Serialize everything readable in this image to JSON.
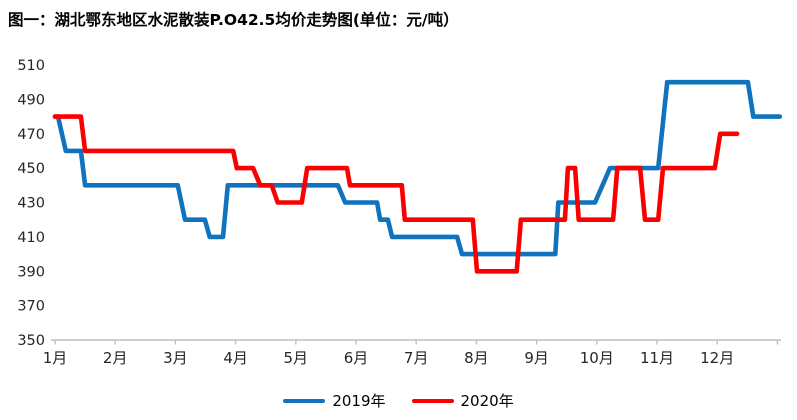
{
  "chart_data": {
    "type": "line",
    "title": "图一：湖北鄂东地区水泥散装P.O42.5均价走势图(单位：元/吨）",
    "ylabel": "",
    "xlabel": "",
    "grid": false,
    "legend_position": "bottom",
    "y_axis": {
      "min": 350,
      "max": 510,
      "ticks": [
        510,
        490,
        470,
        450,
        430,
        410,
        390,
        370,
        350
      ]
    },
    "x_axis": {
      "tick_labels": [
        "1月",
        "2月",
        "3月",
        "4月",
        "5月",
        "6月",
        "7月",
        "8月",
        "9月",
        "10月",
        "11月",
        "12月"
      ]
    },
    "axis_color": "#bfbfbf",
    "tick_label_color": "#262626",
    "series": [
      {
        "name": "2019年",
        "color": "#1172bd",
        "points": [
          [
            1.0,
            480
          ],
          [
            1.05,
            480
          ],
          [
            1.18,
            460
          ],
          [
            1.43,
            460
          ],
          [
            1.5,
            440
          ],
          [
            3.04,
            440
          ],
          [
            3.16,
            420
          ],
          [
            3.49,
            420
          ],
          [
            3.57,
            410
          ],
          [
            3.79,
            410
          ],
          [
            3.87,
            440
          ],
          [
            5.7,
            440
          ],
          [
            5.82,
            430
          ],
          [
            6.35,
            430
          ],
          [
            6.4,
            420
          ],
          [
            6.53,
            420
          ],
          [
            6.6,
            410
          ],
          [
            7.68,
            410
          ],
          [
            7.76,
            400
          ],
          [
            9.31,
            400
          ],
          [
            9.36,
            430
          ],
          [
            9.97,
            430
          ],
          [
            10.22,
            450
          ],
          [
            11.02,
            450
          ],
          [
            11.17,
            500
          ],
          [
            12.51,
            500
          ],
          [
            12.6,
            480
          ],
          [
            13.04,
            480
          ]
        ]
      },
      {
        "name": "2020年",
        "color": "#fb0000",
        "points": [
          [
            1.0,
            480
          ],
          [
            1.43,
            480
          ],
          [
            1.5,
            460
          ],
          [
            3.96,
            460
          ],
          [
            4.02,
            450
          ],
          [
            4.29,
            450
          ],
          [
            4.41,
            440
          ],
          [
            4.6,
            440
          ],
          [
            4.7,
            430
          ],
          [
            5.1,
            430
          ],
          [
            5.19,
            450
          ],
          [
            5.85,
            450
          ],
          [
            5.9,
            440
          ],
          [
            6.76,
            440
          ],
          [
            6.81,
            420
          ],
          [
            7.94,
            420
          ],
          [
            8.01,
            390
          ],
          [
            8.67,
            390
          ],
          [
            8.74,
            420
          ],
          [
            9.47,
            420
          ],
          [
            9.52,
            450
          ],
          [
            9.64,
            450
          ],
          [
            9.7,
            420
          ],
          [
            10.27,
            420
          ],
          [
            10.34,
            450
          ],
          [
            10.72,
            450
          ],
          [
            10.8,
            420
          ],
          [
            11.02,
            420
          ],
          [
            11.1,
            450
          ],
          [
            11.96,
            450
          ],
          [
            12.05,
            470
          ],
          [
            12.33,
            470
          ]
        ]
      }
    ]
  }
}
